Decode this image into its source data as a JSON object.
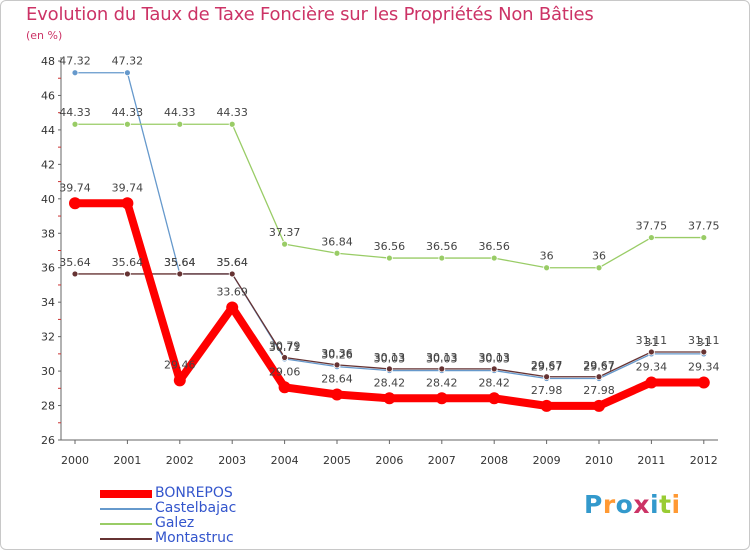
{
  "chart_data": {
    "type": "line",
    "title": "Evolution du Taux de Taxe Foncière sur les Propriétés Non Bâties",
    "subtitle": "(en %)",
    "categories": [
      "2000",
      "2001",
      "2002",
      "2003",
      "2004",
      "2005",
      "2006",
      "2007",
      "2008",
      "2009",
      "2010",
      "2011",
      "2012"
    ],
    "ylim": [
      26,
      48
    ],
    "yticks": [
      26,
      28,
      30,
      32,
      34,
      36,
      38,
      40,
      42,
      44,
      46,
      48
    ],
    "series": [
      {
        "name": "BONREPOS",
        "color": "#ff0000",
        "values": [
          39.74,
          39.74,
          29.46,
          33.69,
          29.06,
          28.64,
          28.42,
          28.42,
          28.42,
          27.98,
          27.98,
          29.34,
          29.34
        ],
        "labels": [
          "39.74",
          "39.74",
          "29.46",
          "33.69",
          "29.06",
          "28.64",
          "28.42",
          "28.42",
          "28.42",
          "27.98",
          "27.98",
          "29.34",
          "29.34"
        ]
      },
      {
        "name": "Castelbajac",
        "color": "#6699cc",
        "values": [
          47.32,
          47.32,
          35.64,
          35.64,
          30.71,
          30.26,
          30.03,
          30.03,
          30.03,
          29.57,
          29.57,
          31,
          31
        ],
        "labels": [
          "47.32",
          "47.32",
          "35.64",
          "35.64",
          "30.71",
          "30.26",
          "30.03",
          "30.03",
          "30.03",
          "29.57",
          "29.57",
          "31",
          "31"
        ]
      },
      {
        "name": "Galez",
        "color": "#99cc66",
        "values": [
          44.33,
          44.33,
          44.33,
          44.33,
          37.37,
          36.84,
          36.56,
          36.56,
          36.56,
          36,
          36,
          37.75,
          37.75
        ],
        "labels": [
          "44.33",
          "44.33",
          "44.33",
          "44.33",
          "37.37",
          "36.84",
          "36.56",
          "36.56",
          "36.56",
          "36",
          "36",
          "37.75",
          "37.75"
        ]
      },
      {
        "name": "Montastruc",
        "color": "#663333",
        "values": [
          35.64,
          35.64,
          35.64,
          35.64,
          30.79,
          30.36,
          30.13,
          30.13,
          30.13,
          29.67,
          29.67,
          31.11,
          31.11
        ],
        "labels": [
          "35.64",
          "35.64",
          "35.64",
          "35.64",
          "30.79",
          "30.36",
          "30.13",
          "30.13",
          "30.13",
          "29.67",
          "29.67",
          "31.11",
          "31.11"
        ]
      }
    ],
    "legend_position": "bottom-left"
  },
  "legend": {
    "items": [
      {
        "label": "BONREPOS",
        "color": "#ff0000"
      },
      {
        "label": "Castelbajac",
        "color": "#6699cc"
      },
      {
        "label": "Galez",
        "color": "#99cc66"
      },
      {
        "label": "Montastruc",
        "color": "#663333"
      }
    ]
  },
  "logo": {
    "letters": [
      "P",
      "r",
      "o",
      "x",
      "i",
      "t",
      "i"
    ],
    "colors": [
      "#3399cc",
      "#ff9933",
      "#3399cc",
      "#cc3366",
      "#3399cc",
      "#99cc33",
      "#ff9933"
    ]
  }
}
